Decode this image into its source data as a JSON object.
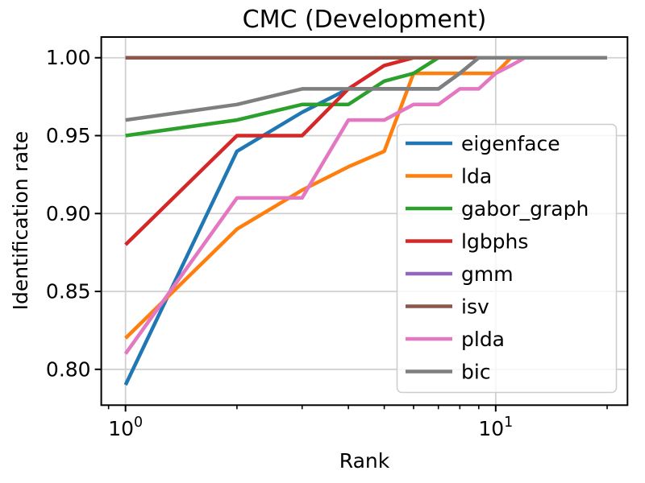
{
  "chart_data": {
    "type": "line",
    "title": "CMC (Development)",
    "xlabel": "Rank",
    "ylabel": "Identification rate",
    "x_scale": "log10",
    "grid": true,
    "legend_position": "center right",
    "xlim": [
      0.86,
      22.7
    ],
    "ylim": [
      0.777,
      1.0133
    ],
    "x": [
      1,
      2,
      3,
      4,
      5,
      6,
      7,
      8,
      9,
      10,
      11,
      12,
      13,
      14,
      15,
      16,
      17,
      18,
      19,
      20
    ],
    "yticks": [
      {
        "value": 1.0,
        "label": "1.00"
      },
      {
        "value": 0.95,
        "label": "0.95"
      },
      {
        "value": 0.9,
        "label": "0.90"
      },
      {
        "value": 0.85,
        "label": "0.85"
      },
      {
        "value": 0.8,
        "label": "0.80"
      }
    ],
    "xticks": [
      {
        "value": 1,
        "base": "10",
        "exp": "0"
      },
      {
        "value": 10,
        "base": "10",
        "exp": "1"
      }
    ],
    "minor_xticks": [
      0.9,
      2,
      3,
      4,
      5,
      6,
      7,
      8,
      9,
      20
    ],
    "series": [
      {
        "name": "eigenface",
        "color": "#1f77b4",
        "values": [
          0.79,
          0.94,
          0.965,
          0.98,
          0.98,
          0.98,
          0.98,
          0.99,
          1.0,
          1.0,
          1.0,
          1.0,
          1.0,
          1.0,
          1.0,
          1.0,
          1.0,
          1.0,
          1.0,
          1.0
        ]
      },
      {
        "name": "lda",
        "color": "#ff7f0e",
        "values": [
          0.82,
          0.89,
          0.915,
          0.93,
          0.94,
          0.99,
          0.99,
          0.99,
          0.99,
          0.99,
          1.0,
          1.0,
          1.0,
          1.0,
          1.0,
          1.0,
          1.0,
          1.0,
          1.0,
          1.0
        ]
      },
      {
        "name": "gabor_graph",
        "color": "#2ca02c",
        "values": [
          0.95,
          0.96,
          0.97,
          0.97,
          0.985,
          0.99,
          1.0,
          1.0,
          1.0,
          1.0,
          1.0,
          1.0,
          1.0,
          1.0,
          1.0,
          1.0,
          1.0,
          1.0,
          1.0,
          1.0
        ]
      },
      {
        "name": "lgbphs",
        "color": "#d62728",
        "values": [
          0.88,
          0.95,
          0.95,
          0.98,
          0.995,
          1.0,
          1.0,
          1.0,
          1.0,
          1.0,
          1.0,
          1.0,
          1.0,
          1.0,
          1.0,
          1.0,
          1.0,
          1.0,
          1.0,
          1.0
        ]
      },
      {
        "name": "gmm",
        "color": "#9467bd",
        "values": [
          1.0,
          1.0,
          1.0,
          1.0,
          1.0,
          1.0,
          1.0,
          1.0,
          1.0,
          1.0,
          1.0,
          1.0,
          1.0,
          1.0,
          1.0,
          1.0,
          1.0,
          1.0,
          1.0,
          1.0
        ]
      },
      {
        "name": "isv",
        "color": "#8c564b",
        "values": [
          1.0,
          1.0,
          1.0,
          1.0,
          1.0,
          1.0,
          1.0,
          1.0,
          1.0,
          1.0,
          1.0,
          1.0,
          1.0,
          1.0,
          1.0,
          1.0,
          1.0,
          1.0,
          1.0,
          1.0
        ]
      },
      {
        "name": "plda",
        "color": "#e377c2",
        "values": [
          0.81,
          0.91,
          0.91,
          0.96,
          0.96,
          0.97,
          0.97,
          0.98,
          0.98,
          0.99,
          0.995,
          1.0,
          1.0,
          1.0,
          1.0,
          1.0,
          1.0,
          1.0,
          1.0,
          1.0
        ]
      },
      {
        "name": "bic",
        "color": "#7f7f7f",
        "values": [
          0.96,
          0.97,
          0.98,
          0.98,
          0.98,
          0.98,
          0.98,
          0.99,
          1.0,
          1.0,
          1.0,
          1.0,
          1.0,
          1.0,
          1.0,
          1.0,
          1.0,
          1.0,
          1.0,
          1.0
        ]
      }
    ],
    "style": {
      "grid_color": "#d0d0d0",
      "spine_color": "#000000",
      "legend_border_color": "#cccccc",
      "legend_bg": "rgba(255,255,255,0.8)"
    }
  }
}
